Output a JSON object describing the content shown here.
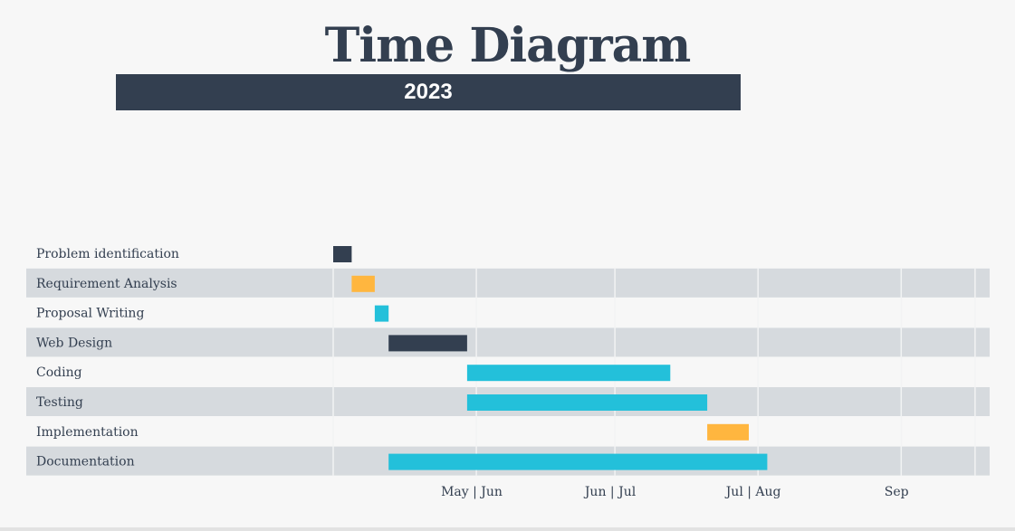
{
  "title": "Time Diagram",
  "subtitle": "2023",
  "colors": {
    "background": "#f7f7f7",
    "band": "#d6dade",
    "gridline": "#f2f3f4",
    "text": "#333f50",
    "navy": "#333f50",
    "yellow": "#ffb63f",
    "cyan": "#23c0da"
  },
  "chart_data": {
    "type": "gantt",
    "title": "Time Diagram",
    "subtitle": "2023",
    "x_range": [
      "2023-05-01",
      "2023-09-30"
    ],
    "grid": true,
    "tasks": [
      {
        "name": "Problem identification",
        "start": "2023-05-01",
        "end": "2023-05-05",
        "color": "#333f50"
      },
      {
        "name": "Requirement Analysis",
        "start": "2023-05-05",
        "end": "2023-05-10",
        "color": "#ffb63f"
      },
      {
        "name": "Proposal Writing",
        "start": "2023-05-10",
        "end": "2023-05-13",
        "color": "#23c0da"
      },
      {
        "name": "Web Design",
        "start": "2023-05-13",
        "end": "2023-05-30",
        "color": "#333f50"
      },
      {
        "name": "Coding",
        "start": "2023-05-30",
        "end": "2023-07-13",
        "color": "#23c0da"
      },
      {
        "name": "Testing",
        "start": "2023-05-30",
        "end": "2023-07-21",
        "color": "#23c0da"
      },
      {
        "name": "Implementation",
        "start": "2023-07-21",
        "end": "2023-07-30",
        "color": "#ffb63f"
      },
      {
        "name": "Documentation",
        "start": "2023-05-13",
        "end": "2023-08-03",
        "color": "#23c0da"
      }
    ],
    "x_ticks": [
      {
        "label": "May | Jun",
        "date": "2023-05-31"
      },
      {
        "label": "Jun | Jul",
        "date": "2023-06-30"
      },
      {
        "label": "Jul | Aug",
        "date": "2023-07-31"
      },
      {
        "label": "Sep",
        "date": "2023-08-31"
      }
    ],
    "gridlines": [
      "2023-05-01",
      "2023-06-01",
      "2023-07-01",
      "2023-08-01",
      "2023-09-01",
      "2023-09-17",
      "2023-09-26",
      "2023-10-05"
    ]
  }
}
